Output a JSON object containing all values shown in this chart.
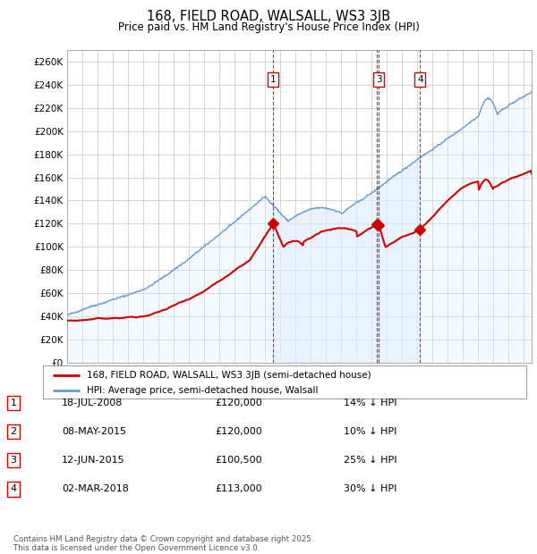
{
  "title": "168, FIELD ROAD, WALSALL, WS3 3JB",
  "subtitle": "Price paid vs. HM Land Registry's House Price Index (HPI)",
  "ylim": [
    0,
    270000
  ],
  "yticks": [
    0,
    20000,
    40000,
    60000,
    80000,
    100000,
    120000,
    140000,
    160000,
    180000,
    200000,
    220000,
    240000,
    260000
  ],
  "background_color": "#ffffff",
  "plot_bg_color": "#ffffff",
  "grid_color": "#cccccc",
  "sale_color": "#cc0000",
  "hpi_color": "#6699cc",
  "hpi_fill_color": "#ddeeff",
  "legend_label_sale": "168, FIELD ROAD, WALSALL, WS3 3JB (semi-detached house)",
  "legend_label_hpi": "HPI: Average price, semi-detached house, Walsall",
  "transactions": [
    {
      "id": 1,
      "date_str": "18-JUL-2008",
      "price": 120000,
      "price_str": "£120,000",
      "hpi_diff": "14% ↓ HPI",
      "date_num": 2008.54
    },
    {
      "id": 2,
      "date_str": "08-MAY-2015",
      "price": 120000,
      "price_str": "£120,000",
      "hpi_diff": "10% ↓ HPI",
      "date_num": 2015.35
    },
    {
      "id": 3,
      "date_str": "12-JUN-2015",
      "price": 100500,
      "price_str": "£100,500",
      "hpi_diff": "25% ↓ HPI",
      "date_num": 2015.45
    },
    {
      "id": 4,
      "date_str": "02-MAR-2018",
      "price": 113000,
      "price_str": "£113,000",
      "hpi_diff": "30% ↓ HPI",
      "date_num": 2018.17
    }
  ],
  "annotations_shown": [
    1,
    3,
    4
  ],
  "footer": "Contains HM Land Registry data © Crown copyright and database right 2025.\nThis data is licensed under the Open Government Licence v3.0.",
  "xmin": 1995,
  "xmax": 2025.5,
  "shade_start": 2008.54,
  "shade_end": 2018.17
}
